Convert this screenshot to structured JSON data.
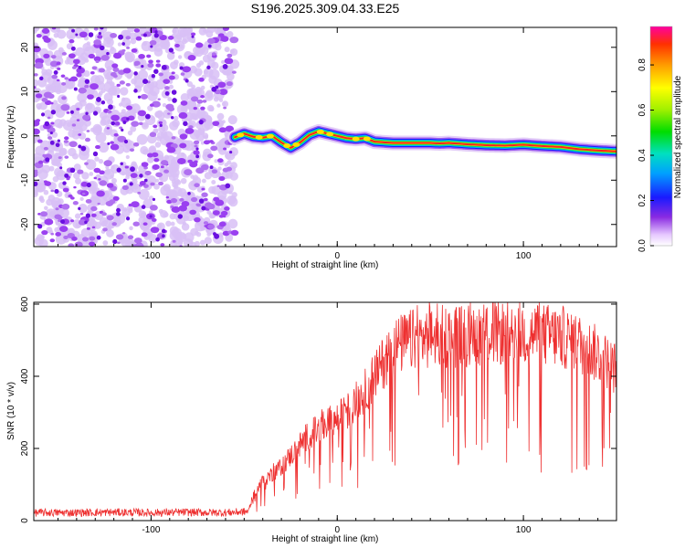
{
  "title": "S196.2025.309.04.33.E25",
  "chart_data": [
    {
      "type": "heatmap",
      "xlabel": "Height of straight line (km)",
      "ylabel": "Frequency (Hz)",
      "xlim": [
        -163,
        150
      ],
      "ylim": [
        -25,
        24.5
      ],
      "xticks": [
        -100,
        0,
        100
      ],
      "yticks": [
        -20,
        -10,
        0,
        10,
        20
      ],
      "colorbar": {
        "label": "Normalized spectral amplitude",
        "range": [
          0,
          0.97
        ],
        "ticks": [
          "0.0",
          "0.2",
          "0.4",
          "0.6",
          "0.8"
        ],
        "tick_values": [
          0.0,
          0.2,
          0.4,
          0.6,
          0.8
        ]
      },
      "noise_region_x": [
        -163,
        -55
      ],
      "signal_track": {
        "x": [
          -55,
          -50,
          -45,
          -40,
          -35,
          -30,
          -25,
          -20,
          -15,
          -10,
          -5,
          0,
          5,
          10,
          15,
          20,
          30,
          40,
          50,
          55,
          60,
          70,
          80,
          90,
          100,
          110,
          120,
          130,
          140,
          150
        ],
        "frequency": [
          -0.3,
          0.5,
          -0.2,
          -0.4,
          0.0,
          -1.5,
          -2.7,
          -1.5,
          0.2,
          1.0,
          0.5,
          0.0,
          -0.5,
          -0.7,
          -0.5,
          -1.3,
          -1.6,
          -1.6,
          -1.6,
          -1.7,
          -1.6,
          -1.9,
          -2.1,
          -2.2,
          -2.0,
          -2.3,
          -2.5,
          -3.0,
          -3.3,
          -3.5
        ]
      }
    },
    {
      "type": "line",
      "xlabel": "Height of straight line (km)",
      "ylabel": "SNR (10 * v/v)",
      "xlim": [
        -163,
        150
      ],
      "ylim": [
        0,
        605
      ],
      "xticks": [
        -100,
        0,
        100
      ],
      "yticks": [
        0,
        200,
        400,
        600
      ],
      "series": [
        {
          "name": "SNR",
          "color": "#ee3030",
          "x": [
            -163,
            -140,
            -120,
            -100,
            -80,
            -60,
            -48,
            -45,
            -40,
            -35,
            -30,
            -25,
            -20,
            -15,
            -10,
            -5,
            0,
            5,
            10,
            15,
            20,
            25,
            30,
            40,
            50,
            60,
            70,
            80,
            90,
            100,
            110,
            120,
            130,
            140,
            150
          ],
          "values": [
            22,
            22,
            23,
            22,
            23,
            22,
            25,
            70,
            110,
            130,
            150,
            180,
            210,
            240,
            250,
            270,
            280,
            300,
            330,
            360,
            400,
            440,
            480,
            500,
            510,
            510,
            515,
            520,
            520,
            520,
            515,
            510,
            490,
            460,
            420
          ]
        }
      ]
    }
  ]
}
